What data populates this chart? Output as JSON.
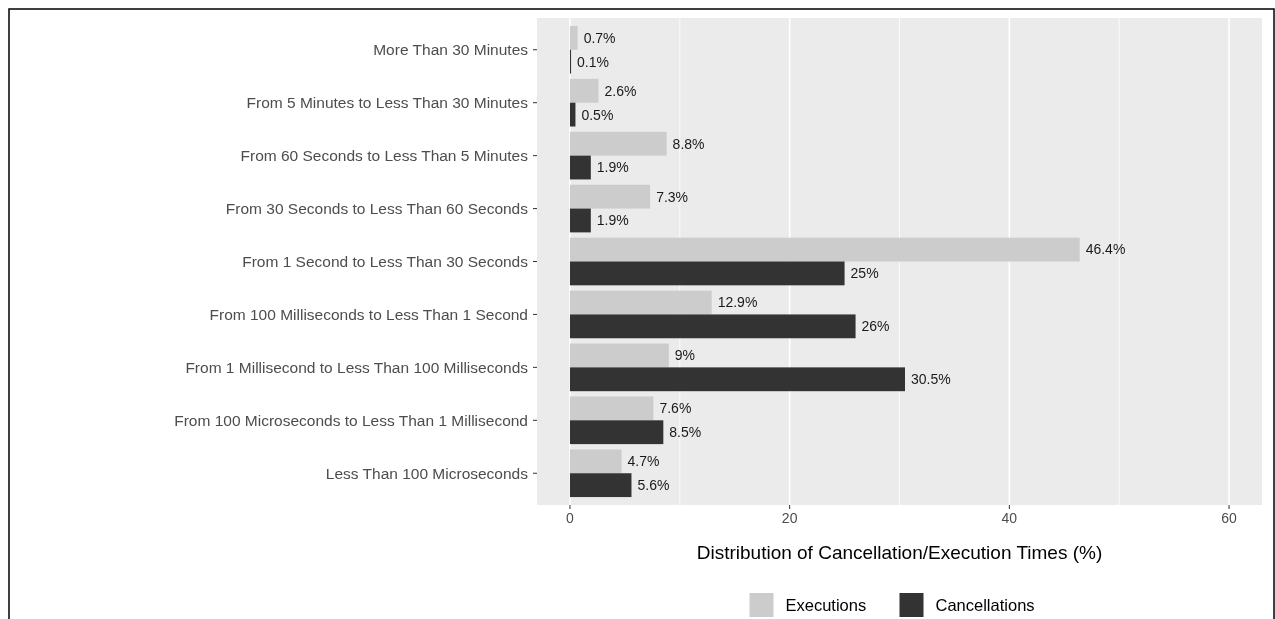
{
  "chart_data": {
    "type": "bar",
    "orientation": "horizontal",
    "xlabel": "Distribution of Cancellation/Execution Times (%)",
    "categories": [
      "More Than 30 Minutes",
      "From 5 Minutes to Less Than 30 Minutes",
      "From 60 Seconds to Less Than 5 Minutes",
      "From 30 Seconds to Less Than 60 Seconds",
      "From 1 Second to Less Than 30 Seconds",
      "From 100 Milliseconds to Less Than 1 Second",
      "From 1 Millisecond to Less Than 100 Milliseconds",
      "From 100 Microseconds to Less Than 1 Millisecond",
      "Less Than 100 Microseconds"
    ],
    "series": [
      {
        "name": "Executions",
        "color": "#cccccc",
        "values": [
          0.7,
          2.6,
          8.8,
          7.3,
          46.4,
          12.9,
          9,
          7.6,
          4.7
        ],
        "value_labels": [
          "0.7%",
          "2.6%",
          "8.8%",
          "7.3%",
          "46.4%",
          "12.9%",
          "9%",
          "7.6%",
          "4.7%"
        ]
      },
      {
        "name": "Cancellations",
        "color": "#333333",
        "values": [
          0.1,
          0.5,
          1.9,
          1.9,
          25,
          26,
          30.5,
          8.5,
          5.6
        ],
        "value_labels": [
          "0.1%",
          "0.5%",
          "1.9%",
          "1.9%",
          "25%",
          "26%",
          "30.5%",
          "8.5%",
          "5.6%"
        ]
      }
    ],
    "xlim": [
      -3,
      63
    ],
    "xticks": [
      0,
      20,
      40,
      60
    ],
    "grid": "x",
    "legend": "bottom"
  }
}
